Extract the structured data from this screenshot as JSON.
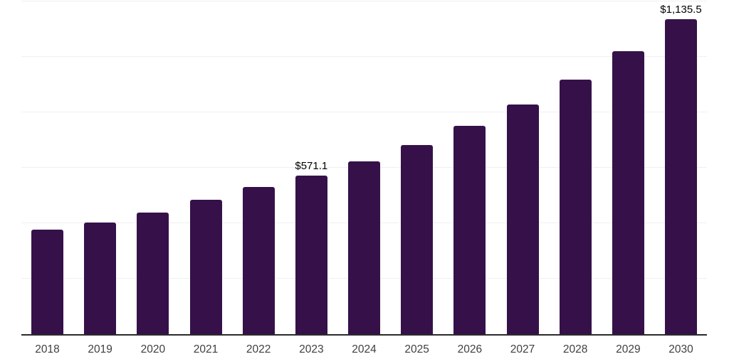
{
  "chart_data": {
    "type": "bar",
    "title": "",
    "xlabel": "",
    "ylabel": "",
    "legend": "none",
    "categories": [
      "2018",
      "2019",
      "2020",
      "2021",
      "2022",
      "2023",
      "2024",
      "2025",
      "2026",
      "2027",
      "2028",
      "2029",
      "2030"
    ],
    "values": [
      377,
      403,
      438,
      485,
      531,
      571.1,
      623,
      682,
      751,
      828,
      918,
      1020,
      1135.5
    ],
    "data_labels": [
      "",
      "",
      "",
      "",
      "",
      "$571.1",
      "",
      "",
      "",
      "",
      "",
      "",
      "$1,135.5"
    ],
    "ylim": [
      0,
      1200
    ],
    "gridline_step": 200,
    "grid": "horizontal-light",
    "colors": {
      "bar": "#361149",
      "gridline": "#f0f0f0",
      "axis_line": "#2b2b2b",
      "tick_label": "#3f3f3f",
      "data_label": "#000000",
      "background": "#ffffff"
    }
  }
}
